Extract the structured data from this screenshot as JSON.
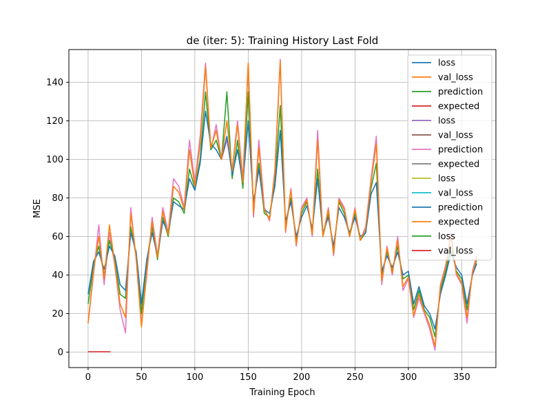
{
  "chart_data": {
    "type": "line",
    "title": "de (iter: 5): Training History Last Fold",
    "xlabel": "Training Epoch",
    "ylabel": "MSE",
    "xlim": [
      -18,
      382
    ],
    "ylim": [
      -8,
      157
    ],
    "xticks": [
      0,
      50,
      100,
      150,
      200,
      250,
      300,
      350
    ],
    "yticks": [
      0,
      20,
      40,
      60,
      80,
      100,
      120,
      140
    ],
    "grid": true,
    "legend_position": "top-right",
    "legend": [
      {
        "label": "loss",
        "color": "#1f77b4"
      },
      {
        "label": "val_loss",
        "color": "#ff7f0e"
      },
      {
        "label": "prediction",
        "color": "#2ca02c"
      },
      {
        "label": "expected",
        "color": "#d62728"
      },
      {
        "label": "loss",
        "color": "#9467bd"
      },
      {
        "label": "val_loss",
        "color": "#8c564b"
      },
      {
        "label": "prediction",
        "color": "#e377c2"
      },
      {
        "label": "expected",
        "color": "#7f7f7f"
      },
      {
        "label": "loss",
        "color": "#bcbd22"
      },
      {
        "label": "val_loss",
        "color": "#17becf"
      },
      {
        "label": "prediction",
        "color": "#1f77b4"
      },
      {
        "label": "expected",
        "color": "#ff7f0e"
      },
      {
        "label": "loss",
        "color": "#2ca02c"
      },
      {
        "label": "val_loss",
        "color": "#d62728"
      }
    ],
    "visible_series": [
      {
        "color": "#e377c2",
        "x": [
          0,
          5,
          10,
          15,
          20,
          25,
          30,
          35,
          40,
          45,
          50,
          55,
          60,
          65,
          70,
          75,
          80,
          85,
          90,
          95,
          100,
          105,
          110,
          115,
          120,
          125,
          130,
          135,
          140,
          145,
          150,
          155,
          160,
          165,
          170,
          175,
          180,
          185,
          190,
          195,
          200,
          205,
          210,
          215,
          220,
          225,
          230,
          235,
          240,
          245,
          250,
          255,
          260,
          265,
          270,
          275,
          280,
          285,
          290,
          295,
          300,
          305,
          310,
          315,
          320,
          325,
          330,
          335,
          340,
          345,
          350,
          355,
          360,
          364
        ],
        "y": [
          15,
          40,
          66,
          35,
          62,
          45,
          22,
          10,
          75,
          48,
          14,
          40,
          70,
          50,
          75,
          62,
          90,
          86,
          75,
          110,
          88,
          112,
          150,
          105,
          118,
          100,
          110,
          95,
          120,
          90,
          150,
          70,
          110,
          75,
          68,
          95,
          152,
          62,
          85,
          55,
          75,
          80,
          60,
          115,
          60,
          75,
          50,
          80,
          75,
          60,
          75,
          58,
          65,
          90,
          112,
          35,
          55,
          40,
          60,
          32,
          38,
          18,
          28,
          20,
          12,
          1,
          35,
          45,
          62,
          40,
          35,
          15,
          42,
          50
        ]
      },
      {
        "color": "#2ca02c",
        "x": [
          0,
          5,
          10,
          15,
          20,
          25,
          30,
          35,
          40,
          45,
          50,
          55,
          60,
          65,
          70,
          75,
          80,
          85,
          90,
          95,
          100,
          105,
          110,
          115,
          120,
          125,
          130,
          135,
          140,
          145,
          150,
          155,
          160,
          165,
          170,
          175,
          180,
          185,
          190,
          195,
          200,
          205,
          210,
          215,
          220,
          225,
          230,
          235,
          240,
          245,
          250,
          255,
          260,
          265,
          270,
          275,
          280,
          285,
          290,
          295,
          300,
          305,
          310,
          315,
          320,
          325,
          330,
          335,
          340,
          345,
          350,
          355,
          360,
          364
        ],
        "y": [
          25,
          45,
          55,
          40,
          58,
          48,
          30,
          28,
          65,
          50,
          20,
          47,
          65,
          48,
          70,
          60,
          80,
          78,
          72,
          95,
          85,
          100,
          135,
          105,
          110,
          100,
          135,
          90,
          110,
          85,
          135,
          75,
          98,
          72,
          70,
          88,
          128,
          65,
          80,
          58,
          72,
          78,
          62,
          95,
          60,
          72,
          52,
          78,
          72,
          60,
          72,
          58,
          62,
          85,
          98,
          40,
          52,
          42,
          55,
          38,
          40,
          22,
          32,
          22,
          18,
          8,
          32,
          42,
          55,
          42,
          38,
          22,
          40,
          48
        ]
      },
      {
        "color": "#1f77b4",
        "x": [
          0,
          5,
          10,
          15,
          20,
          25,
          30,
          35,
          40,
          45,
          50,
          55,
          60,
          65,
          70,
          75,
          80,
          85,
          90,
          95,
          100,
          105,
          110,
          115,
          120,
          125,
          130,
          135,
          140,
          145,
          150,
          155,
          160,
          165,
          170,
          175,
          180,
          185,
          190,
          195,
          200,
          205,
          210,
          215,
          220,
          225,
          230,
          235,
          240,
          245,
          250,
          255,
          260,
          265,
          270,
          275,
          280,
          285,
          290,
          295,
          300,
          305,
          310,
          315,
          320,
          325,
          330,
          335,
          340,
          345,
          350,
          355,
          360,
          364
        ],
        "y": [
          30,
          47,
          52,
          43,
          55,
          50,
          35,
          32,
          62,
          52,
          25,
          48,
          62,
          50,
          68,
          62,
          78,
          76,
          74,
          90,
          84,
          98,
          125,
          108,
          105,
          100,
          112,
          92,
          105,
          88,
          120,
          78,
          95,
          74,
          72,
          86,
          115,
          68,
          78,
          60,
          70,
          76,
          64,
          90,
          62,
          70,
          55,
          75,
          70,
          62,
          70,
          60,
          62,
          82,
          88,
          42,
          50,
          44,
          52,
          40,
          42,
          25,
          34,
          24,
          20,
          12,
          30,
          40,
          52,
          44,
          40,
          25,
          40,
          46
        ]
      },
      {
        "color": "#ff7f0e",
        "x": [
          0,
          5,
          10,
          15,
          20,
          25,
          30,
          35,
          40,
          45,
          50,
          55,
          60,
          65,
          70,
          75,
          80,
          85,
          90,
          95,
          100,
          105,
          110,
          115,
          120,
          125,
          130,
          135,
          140,
          145,
          150,
          155,
          160,
          165,
          170,
          175,
          180,
          185,
          190,
          195,
          200,
          205,
          210,
          215,
          220,
          225,
          230,
          235,
          240,
          245,
          250,
          255,
          260,
          265,
          270,
          275,
          280,
          285,
          290,
          295,
          300,
          305,
          310,
          315,
          320,
          325,
          330,
          335,
          340,
          345,
          350,
          355,
          360,
          364
        ],
        "y": [
          15,
          42,
          60,
          38,
          66,
          46,
          25,
          18,
          72,
          49,
          13,
          42,
          68,
          49,
          73,
          61,
          86,
          83,
          74,
          105,
          86,
          108,
          148,
          106,
          115,
          100,
          120,
          94,
          118,
          88,
          150,
          72,
          106,
          74,
          69,
          93,
          151,
          63,
          84,
          56,
          74,
          79,
          61,
          110,
          60,
          74,
          51,
          79,
          74,
          60,
          74,
          58,
          64,
          88,
          108,
          37,
          54,
          41,
          58,
          34,
          39,
          19,
          30,
          21,
          14,
          3,
          34,
          44,
          60,
          41,
          36,
          18,
          41,
          49
        ]
      },
      {
        "color": "#d62728",
        "x": [
          0,
          21
        ],
        "y": [
          0.2,
          0.2
        ]
      }
    ]
  }
}
